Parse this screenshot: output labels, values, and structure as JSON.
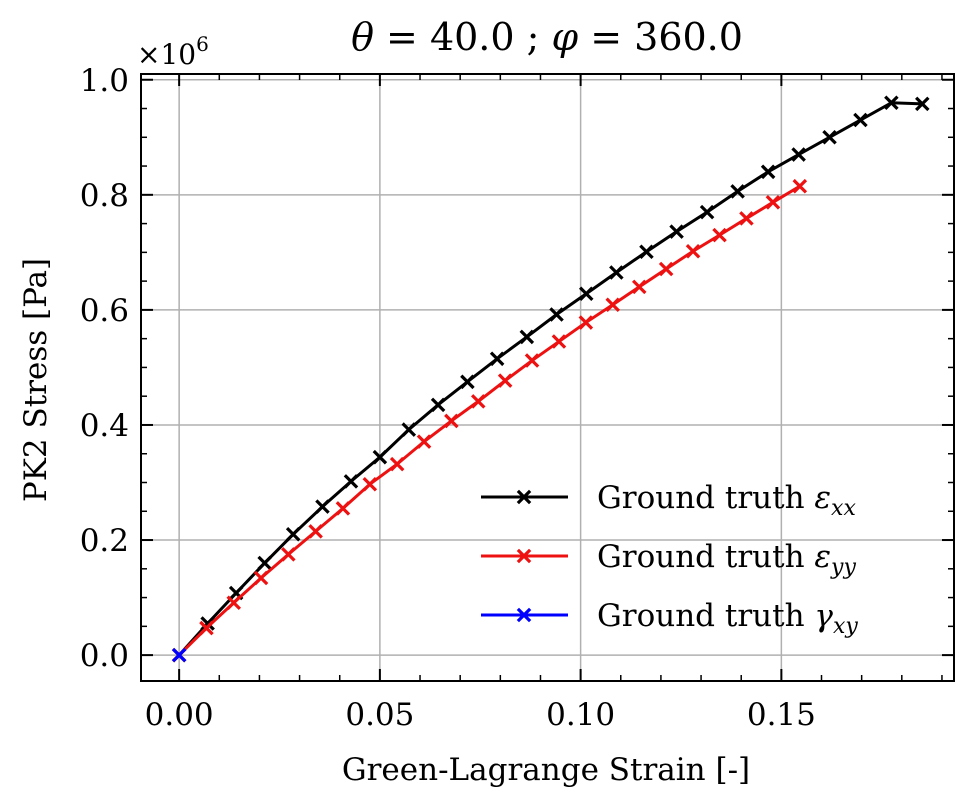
{
  "chart_data": {
    "type": "line",
    "title": {
      "theta_sym": "θ",
      "theta_rest": " = 40.0 ; ",
      "phi_sym": "φ",
      "phi_rest": " = 360.0"
    },
    "xlabel": "Green-Lagrange Strain [-]",
    "ylabel": "PK2 Stress [Pa]",
    "y_multiplier": {
      "base": "×10",
      "exp": "6"
    },
    "xlim": [
      -0.0095,
      0.193
    ],
    "ylim": [
      -0.045,
      1.01
    ],
    "xticks": [
      {
        "v": 0.0,
        "label": "0.00"
      },
      {
        "v": 0.05,
        "label": "0.05"
      },
      {
        "v": 0.1,
        "label": "0.10"
      },
      {
        "v": 0.15,
        "label": "0.15"
      }
    ],
    "yticks": [
      {
        "v": 0.0,
        "label": "0.0"
      },
      {
        "v": 0.2,
        "label": "0.2"
      },
      {
        "v": 0.4,
        "label": "0.4"
      },
      {
        "v": 0.6,
        "label": "0.6"
      },
      {
        "v": 0.8,
        "label": "0.8"
      },
      {
        "v": 1.0,
        "label": "1.0"
      }
    ],
    "grid": true,
    "legend_position": "bottom-right",
    "series": [
      {
        "name": "Ground truth ε_xx",
        "legend": {
          "prefix": "Ground truth ",
          "sym": "ε",
          "sub": "xx"
        },
        "color": "#000000",
        "x": [
          0.0,
          0.0071,
          0.0142,
          0.0213,
          0.0284,
          0.0357,
          0.0428,
          0.05,
          0.0572,
          0.0645,
          0.0718,
          0.0792,
          0.0866,
          0.094,
          0.1014,
          0.1089,
          0.1164,
          0.1239,
          0.1315,
          0.1391,
          0.1467,
          0.1543,
          0.162,
          0.1697,
          0.1774,
          0.1851
        ],
        "y": [
          0.0,
          0.055,
          0.108,
          0.16,
          0.21,
          0.258,
          0.302,
          0.344,
          0.392,
          0.435,
          0.475,
          0.515,
          0.553,
          0.592,
          0.628,
          0.665,
          0.701,
          0.736,
          0.77,
          0.806,
          0.84,
          0.87,
          0.9,
          0.93,
          0.96,
          0.958
        ]
      },
      {
        "name": "Ground truth ε_yy",
        "legend": {
          "prefix": "Ground truth ",
          "sym": "ε",
          "sub": "yy"
        },
        "color": "#ee1111",
        "x": [
          0.0,
          0.0068,
          0.0136,
          0.0204,
          0.0272,
          0.034,
          0.0408,
          0.0475,
          0.0543,
          0.061,
          0.0678,
          0.0745,
          0.0812,
          0.0879,
          0.0946,
          0.1013,
          0.108,
          0.1146,
          0.1213,
          0.128,
          0.1346,
          0.1413,
          0.1479,
          0.1546
        ],
        "y": [
          0.0,
          0.047,
          0.091,
          0.134,
          0.175,
          0.215,
          0.255,
          0.297,
          0.332,
          0.371,
          0.407,
          0.441,
          0.477,
          0.512,
          0.545,
          0.578,
          0.609,
          0.64,
          0.671,
          0.702,
          0.73,
          0.759,
          0.787,
          0.815
        ]
      },
      {
        "name": "Ground truth γ_xy",
        "legend": {
          "prefix": "Ground truth ",
          "sym": "γ",
          "sub": "xy"
        },
        "color": "#0000ff",
        "x": [
          0.0
        ],
        "y": [
          0.0
        ]
      }
    ]
  }
}
